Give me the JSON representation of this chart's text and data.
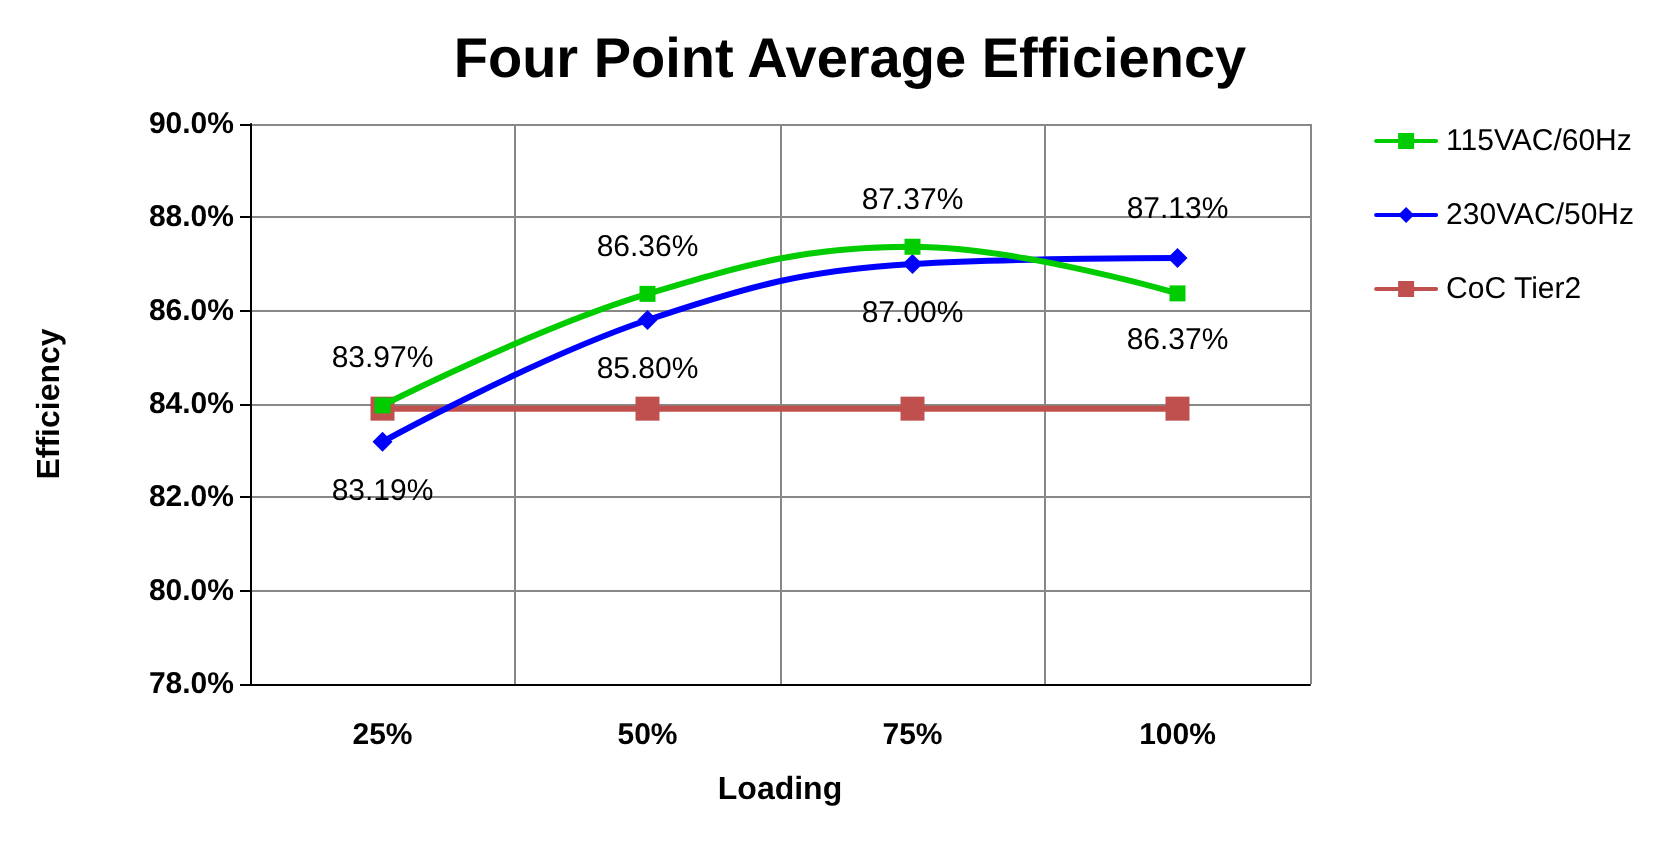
{
  "chart_data": {
    "type": "line",
    "title": "Four Point Average Efficiency",
    "xlabel": "Loading",
    "ylabel": "Efficiency",
    "categories": [
      "25%",
      "50%",
      "75%",
      "100%"
    ],
    "series": [
      {
        "name": "115VAC/60Hz",
        "color": "#00cc00",
        "marker": "square",
        "values": [
          83.97,
          86.36,
          87.37,
          86.37
        ],
        "value_labels": [
          "83.97%",
          "86.36%",
          "87.37%",
          "86.37%"
        ]
      },
      {
        "name": "230VAC/50Hz",
        "color": "#0000ff",
        "marker": "diamond",
        "values": [
          83.19,
          85.8,
          87.0,
          87.13
        ],
        "value_labels": [
          "83.19%",
          "85.80%",
          "87.00%",
          "87.13%"
        ]
      },
      {
        "name": "CoC Tier2",
        "color": "#c0504d",
        "marker": "square",
        "values": [
          83.9,
          83.9,
          83.9,
          83.9
        ]
      }
    ],
    "ylim": [
      78,
      90
    ],
    "yticks": [
      {
        "value": 78,
        "label": "78.0%"
      },
      {
        "value": 80,
        "label": "80.0%"
      },
      {
        "value": 82,
        "label": "82.0%"
      },
      {
        "value": 84,
        "label": "84.0%"
      },
      {
        "value": 86,
        "label": "86.0%"
      },
      {
        "value": 88,
        "label": "88.0%"
      },
      {
        "value": 90,
        "label": "90.0%"
      }
    ],
    "grid": true,
    "legend": "right"
  }
}
